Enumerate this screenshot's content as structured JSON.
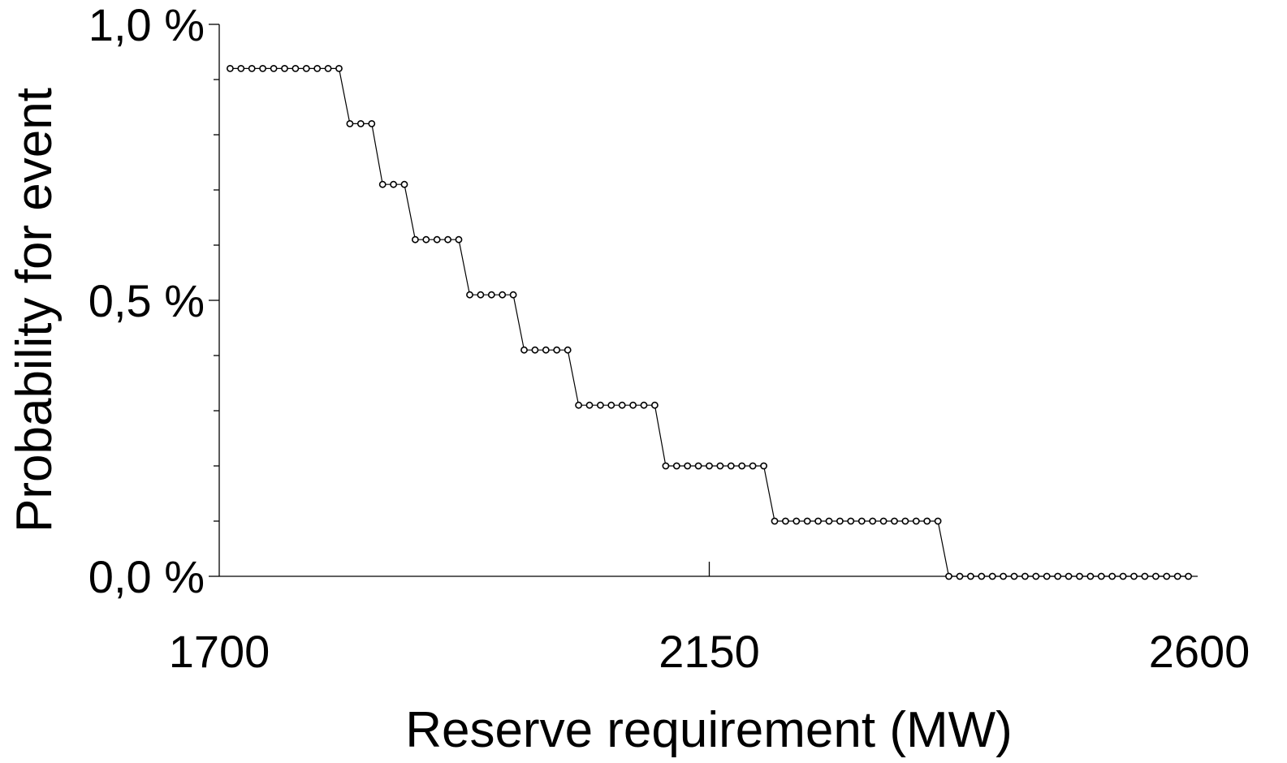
{
  "chart_data": {
    "type": "line",
    "title": "",
    "xlabel": "Reserve requirement (MW)",
    "ylabel": "Probability for event",
    "xlim": [
      1700,
      2600
    ],
    "ylim": [
      0,
      1.0
    ],
    "x_ticks": [
      1700,
      2150,
      2600
    ],
    "x_tick_labels": [
      "1700",
      "2150",
      "2600"
    ],
    "y_ticks": [
      0,
      0.5,
      1.0
    ],
    "y_tick_labels": [
      "0,0 %",
      "0,5 %",
      "1,0 %"
    ],
    "y_minor_ticks": [
      0.1,
      0.2,
      0.3,
      0.4,
      0.6,
      0.7,
      0.8,
      0.9
    ],
    "y_unit": "%",
    "grid": false,
    "legend": "none",
    "marker": "open-circle",
    "colors": {
      "line": "#000000",
      "marker_fill": "#ffffff",
      "background": "#ffffff"
    },
    "series": [
      {
        "x": [
          1710,
          1720,
          1730,
          1740,
          1750,
          1760,
          1770,
          1780,
          1790,
          1800,
          1810,
          1820,
          1830,
          1840,
          1850,
          1860,
          1870,
          1880,
          1890,
          1900,
          1910,
          1920,
          1930,
          1940,
          1950,
          1960,
          1970,
          1980,
          1990,
          2000,
          2010,
          2020,
          2030,
          2040,
          2050,
          2060,
          2070,
          2080,
          2090,
          2100,
          2110,
          2120,
          2130,
          2140,
          2150,
          2160,
          2170,
          2180,
          2190,
          2200,
          2210,
          2220,
          2230,
          2240,
          2250,
          2260,
          2270,
          2280,
          2290,
          2300,
          2310,
          2320,
          2330,
          2340,
          2350,
          2360,
          2370,
          2380,
          2390,
          2400,
          2410,
          2420,
          2430,
          2440,
          2450,
          2460,
          2470,
          2480,
          2490,
          2500,
          2510,
          2520,
          2530,
          2540,
          2550,
          2560,
          2570,
          2580,
          2590
        ],
        "y": [
          0.92,
          0.92,
          0.92,
          0.92,
          0.92,
          0.92,
          0.92,
          0.92,
          0.92,
          0.92,
          0.92,
          0.82,
          0.82,
          0.82,
          0.71,
          0.71,
          0.71,
          0.61,
          0.61,
          0.61,
          0.61,
          0.61,
          0.51,
          0.51,
          0.51,
          0.51,
          0.51,
          0.41,
          0.41,
          0.41,
          0.41,
          0.41,
          0.31,
          0.31,
          0.31,
          0.31,
          0.31,
          0.31,
          0.31,
          0.31,
          0.2,
          0.2,
          0.2,
          0.2,
          0.2,
          0.2,
          0.2,
          0.2,
          0.2,
          0.2,
          0.1,
          0.1,
          0.1,
          0.1,
          0.1,
          0.1,
          0.1,
          0.1,
          0.1,
          0.1,
          0.1,
          0.1,
          0.1,
          0.1,
          0.1,
          0.1,
          0,
          0,
          0,
          0,
          0,
          0,
          0,
          0,
          0,
          0,
          0,
          0,
          0,
          0,
          0,
          0,
          0,
          0,
          0,
          0,
          0,
          0,
          0
        ]
      }
    ]
  }
}
